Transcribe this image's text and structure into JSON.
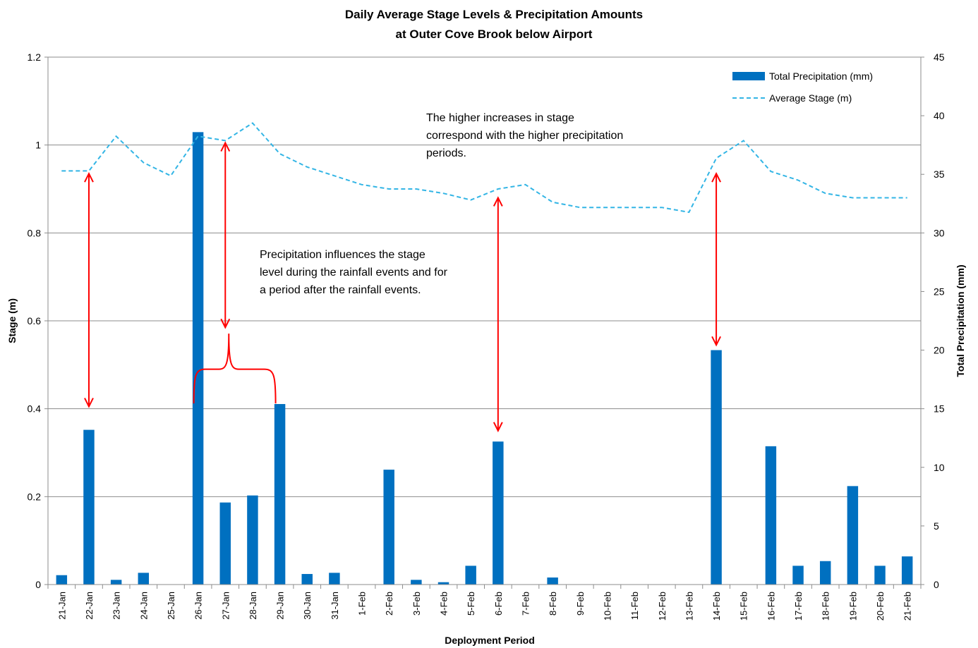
{
  "chart_data": {
    "type": "bar",
    "title": [
      "Daily Average Stage Levels & Precipitation Amounts",
      "at Outer Cove Brook below Airport"
    ],
    "xlabel": "Deployment Period",
    "ylabel_left": "Stage (m)",
    "ylabel_right": "Total Precipitation (mm)",
    "ylim_left": [
      0,
      1.2
    ],
    "yticks_left": [
      "0",
      "0.2",
      "0.4",
      "0.6",
      "0.8",
      "1",
      "1.2"
    ],
    "ylim_right": [
      0,
      45
    ],
    "yticks_right": [
      "0",
      "5",
      "10",
      "15",
      "20",
      "25",
      "30",
      "35",
      "40",
      "45"
    ],
    "grid": "horizontal",
    "legend_position": "top-right",
    "categories": [
      "21-Jan",
      "22-Jan",
      "23-Jan",
      "24-Jan",
      "25-Jan",
      "26-Jan",
      "27-Jan",
      "28-Jan",
      "29-Jan",
      "30-Jan",
      "31-Jan",
      "1-Feb",
      "2-Feb",
      "3-Feb",
      "4-Feb",
      "5-Feb",
      "6-Feb",
      "7-Feb",
      "8-Feb",
      "9-Feb",
      "10-Feb",
      "11-Feb",
      "12-Feb",
      "13-Feb",
      "14-Feb",
      "15-Feb",
      "16-Feb",
      "17-Feb",
      "18-Feb",
      "19-Feb",
      "20-Feb",
      "21-Feb"
    ],
    "series": [
      {
        "name": "Total Precipitation (mm)",
        "type": "bar",
        "axis": "right",
        "color": "#0070C0",
        "values": [
          0.8,
          13.2,
          0.4,
          1.0,
          0.0,
          38.6,
          7.0,
          7.6,
          15.4,
          0.9,
          1.0,
          0.0,
          9.8,
          0.4,
          0.2,
          1.6,
          12.2,
          0.0,
          0.6,
          0.0,
          0.0,
          0.0,
          0.0,
          0.0,
          20.0,
          0.0,
          11.8,
          1.6,
          2.0,
          8.4,
          1.6,
          2.4
        ]
      },
      {
        "name": "Average Stage (m)",
        "type": "line",
        "style": "dashed",
        "axis": "left",
        "color": "#33B5E5",
        "values": [
          0.941,
          0.941,
          1.02,
          0.96,
          0.93,
          1.02,
          1.01,
          1.05,
          0.98,
          0.95,
          0.93,
          0.91,
          0.9,
          0.9,
          0.89,
          0.875,
          0.9,
          0.91,
          0.87,
          0.858,
          0.858,
          0.858,
          0.858,
          0.847,
          0.97,
          1.01,
          0.94,
          0.92,
          0.89,
          0.88,
          0.88,
          0.88
        ]
      }
    ],
    "annotations": [
      {
        "lines": [
          "The higher increases in stage",
          "correspond with the higher precipitation",
          "periods."
        ]
      },
      {
        "lines": [
          "Precipitation influences the stage",
          "level during the rainfall events and for",
          "a period after the rainfall events."
        ]
      }
    ],
    "annotation_color": "#FF0000"
  }
}
